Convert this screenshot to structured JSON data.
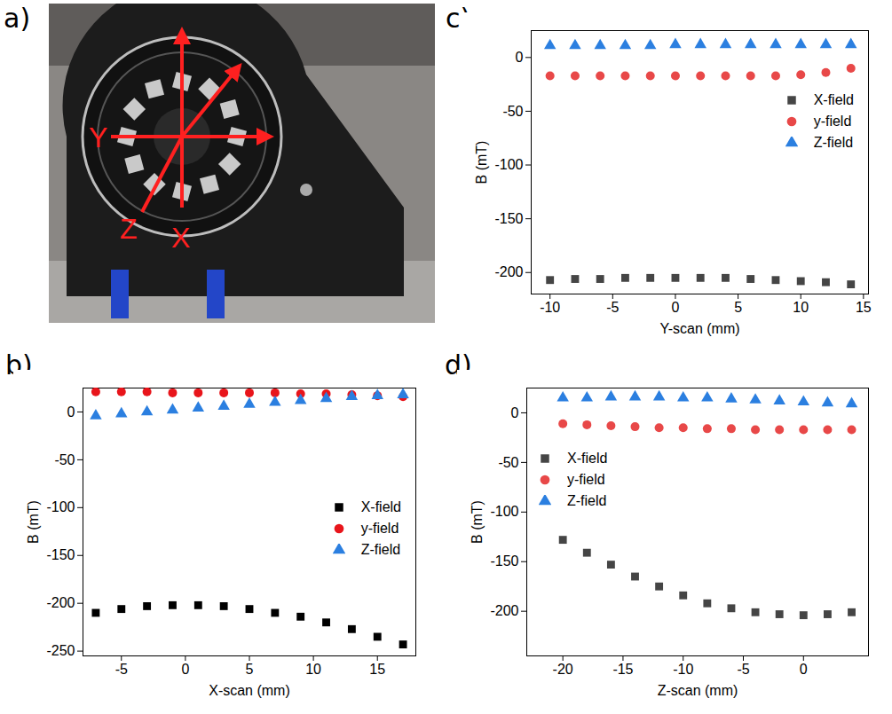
{
  "photo": {
    "panel_label": "a)",
    "axis_labels": [
      "Y",
      "Z",
      "X"
    ]
  },
  "chart_data": [
    {
      "type": "scatter",
      "panel_label": "b)",
      "x_label": "X-scan (mm)",
      "y_label": "B (mT)",
      "x": [
        -7,
        -5,
        -3,
        -1,
        1,
        3,
        5,
        7,
        9,
        11,
        13,
        15,
        17
      ],
      "series": [
        {
          "name": "X-field",
          "color": "#000000",
          "marker": "square",
          "values": [
            -210,
            -206,
            -203,
            -202,
            -202,
            -203,
            -206,
            -210,
            -214,
            -220,
            -227,
            -235,
            -243
          ]
        },
        {
          "name": "y-field",
          "color": "#e8151b",
          "marker": "circle",
          "values": [
            21,
            21,
            21,
            20,
            20,
            20,
            20,
            20,
            19,
            19,
            18,
            17,
            16
          ]
        },
        {
          "name": "Z-field",
          "color": "#2b7fe0",
          "marker": "triangle",
          "values": [
            -4,
            -2,
            0,
            2,
            4,
            6,
            8,
            10,
            12,
            14,
            16,
            17,
            18
          ]
        }
      ],
      "xlim": [
        -8,
        18
      ],
      "xticks": [
        -5,
        0,
        5,
        10,
        15
      ],
      "ylim": [
        -255,
        25
      ],
      "yticks": [
        -250,
        -200,
        -150,
        -100,
        -50,
        0
      ],
      "legend": "center right",
      "grid": false
    },
    {
      "type": "scatter",
      "panel_label": "c)",
      "x_label": "Y-scan (mm)",
      "y_label": "B (mT)",
      "x": [
        -10,
        -8,
        -6,
        -4,
        -2,
        0,
        2,
        4,
        6,
        8,
        10,
        12,
        14
      ],
      "series": [
        {
          "name": "X-field",
          "color": "#454545",
          "marker": "square",
          "values": [
            -207,
            -206,
            -206,
            -205,
            -205,
            -205,
            -205,
            -205,
            -206,
            -207,
            -208,
            -209,
            -211
          ]
        },
        {
          "name": "y-field",
          "color": "#e84848",
          "marker": "circle",
          "values": [
            -17,
            -17,
            -17,
            -17,
            -17,
            -17,
            -17,
            -17,
            -17,
            -17,
            -16,
            -14,
            -10
          ]
        },
        {
          "name": "Z-field",
          "color": "#2b7fe0",
          "marker": "triangle",
          "values": [
            11,
            11,
            11,
            11,
            11,
            12,
            12,
            12,
            12,
            12,
            12,
            12,
            12
          ]
        }
      ],
      "xlim": [
        -11.5,
        15.4
      ],
      "xticks": [
        -10,
        -5,
        0,
        5,
        10,
        15
      ],
      "ylim": [
        -220,
        25
      ],
      "yticks": [
        -200,
        -150,
        -100,
        -50,
        0
      ],
      "legend": "upper right",
      "grid": false
    },
    {
      "type": "scatter",
      "panel_label": "d)",
      "x_label": "Z-scan (mm)",
      "y_label": "B (mT)",
      "x": [
        -20,
        -18,
        -16,
        -14,
        -12,
        -10,
        -8,
        -6,
        -4,
        -2,
        0,
        2,
        4
      ],
      "series": [
        {
          "name": "X-field",
          "color": "#454545",
          "marker": "square",
          "values": [
            -128,
            -141,
            -153,
            -165,
            -175,
            -184,
            -192,
            -197,
            -201,
            -203,
            -204,
            -203,
            -201
          ]
        },
        {
          "name": "y-field",
          "color": "#e84848",
          "marker": "circle",
          "values": [
            -11,
            -12,
            -13,
            -14,
            -15,
            -15,
            -16,
            -16,
            -17,
            -17,
            -17,
            -17,
            -17
          ]
        },
        {
          "name": "Z-field",
          "color": "#2b7fe0",
          "marker": "triangle",
          "values": [
            15,
            15,
            16,
            16,
            16,
            15,
            15,
            14,
            13,
            12,
            11,
            10,
            9
          ]
        }
      ],
      "xlim": [
        -23,
        5.4
      ],
      "xticks": [
        -20,
        -15,
        -10,
        -5,
        0
      ],
      "ylim": [
        -245,
        25
      ],
      "yticks": [
        -200,
        -150,
        -100,
        -50,
        0
      ],
      "legend": "upper left",
      "grid": false
    }
  ]
}
